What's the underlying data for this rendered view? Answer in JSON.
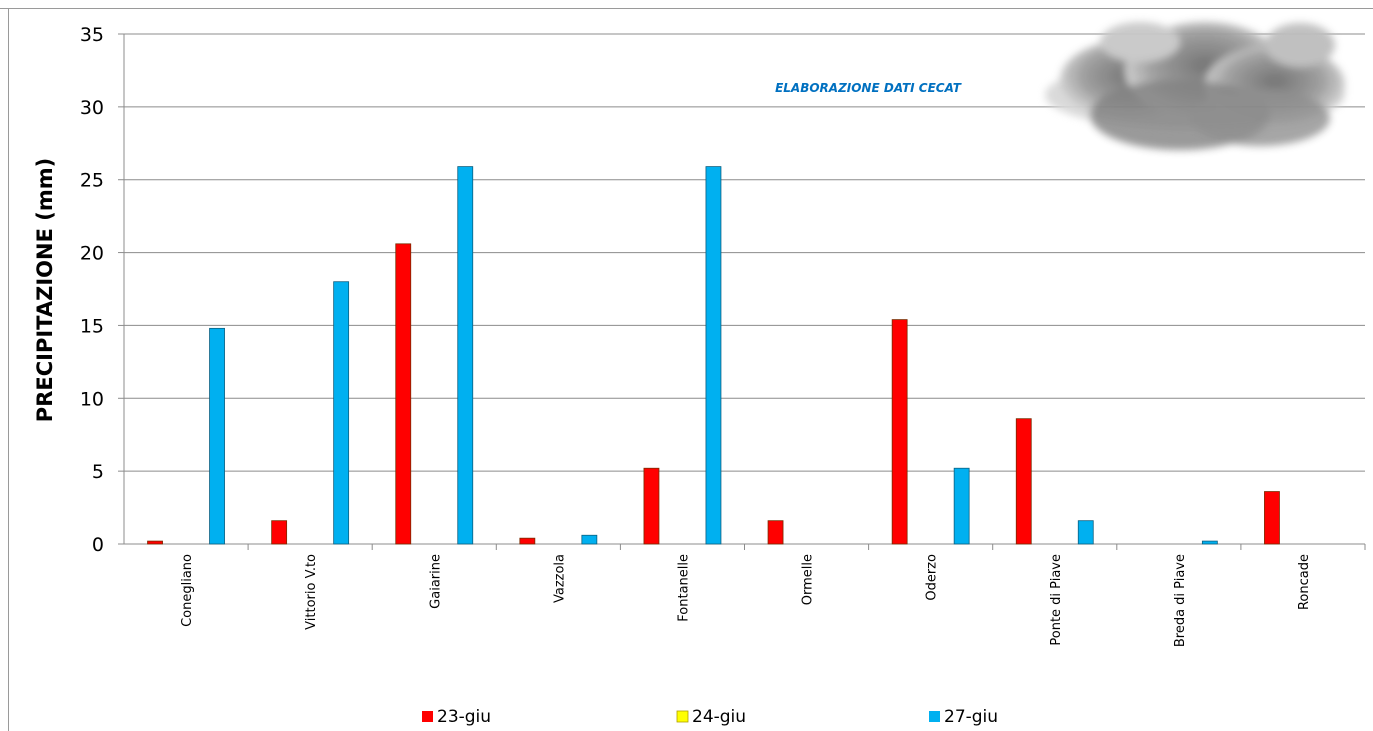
{
  "chart_data": {
    "type": "bar",
    "ylabel": "PRECIPITAZIONE (mm)",
    "annotation": "ELABORAZIONE DATI CECAT",
    "ylim": [
      0,
      35
    ],
    "yticks": [
      "0",
      "5",
      "10",
      "15",
      "20",
      "25",
      "30",
      "35"
    ],
    "grid": true,
    "legend_position": "bottom",
    "categories": [
      "Conegliano",
      "Vittorio V.to",
      "Gaiarine",
      "Vazzola",
      "Fontanelle",
      "Ormelle",
      "Oderzo",
      "Ponte di Piave",
      "Breda di Piave",
      "Roncade"
    ],
    "series": [
      {
        "name": "23-giu",
        "color": "#ff0000",
        "values": [
          0.2,
          1.6,
          20.6,
          0.4,
          5.2,
          1.6,
          15.4,
          8.6,
          0,
          3.6
        ]
      },
      {
        "name": "24-giu",
        "color": "#ffff00",
        "values": [
          0,
          0,
          0,
          0,
          0,
          0,
          0,
          0,
          0,
          0
        ]
      },
      {
        "name": "27-giu",
        "color": "#00b0f0",
        "values": [
          14.8,
          18.0,
          25.9,
          0.6,
          25.9,
          0,
          5.2,
          1.6,
          0.2,
          0
        ]
      }
    ],
    "decoration": "cloud-image"
  }
}
